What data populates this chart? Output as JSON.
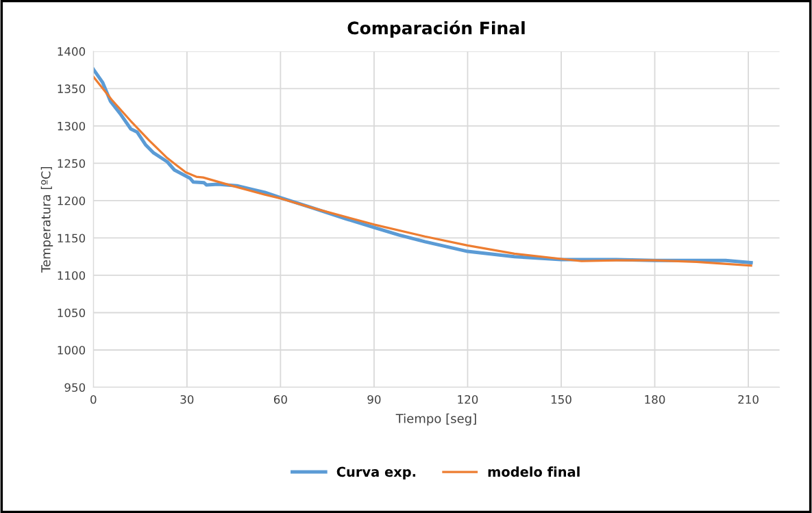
{
  "chart_data": {
    "type": "line",
    "title": "Comparación Final",
    "xlabel": "Tiempo [seg]",
    "ylabel": "Temperatura [ºC]",
    "xlim": [
      0,
      220
    ],
    "xticks": [
      0,
      30,
      60,
      90,
      120,
      150,
      180,
      210
    ],
    "ylim": [
      950,
      1400
    ],
    "yticks": [
      950,
      1000,
      1050,
      1100,
      1150,
      1200,
      1250,
      1300,
      1350,
      1400
    ],
    "grid": true,
    "legend": "bottom",
    "marker": "none",
    "line_style": "solid",
    "series": [
      {
        "name": "Curva exp.",
        "color": "#5b9bd5",
        "x": [
          0,
          3,
          5.5,
          8.5,
          12,
          14,
          16.7,
          19.3,
          23.7,
          26,
          31,
          32,
          35.5,
          36.3,
          40,
          46,
          51,
          55,
          60,
          70.5,
          80.7,
          90,
          98,
          106.3,
          120,
          135,
          150,
          167.7,
          180,
          202.7,
          210.9
        ],
        "values": [
          1376,
          1358,
          1333,
          1317,
          1296,
          1292,
          1275,
          1264,
          1252,
          1241,
          1230,
          1225,
          1224,
          1221,
          1222,
          1220,
          1215,
          1211,
          1204,
          1190,
          1176,
          1164,
          1154,
          1145,
          1132,
          1125,
          1121,
          1121,
          1120,
          1120,
          1117
        ]
      },
      {
        "name": "modelo final",
        "color": "#ed7d31",
        "x": [
          0,
          5.9,
          11.9,
          17.8,
          23.7,
          29.6,
          33,
          35.2,
          44.4,
          55,
          60,
          70.5,
          90,
          106.3,
          120,
          135,
          150,
          156.5,
          167.7,
          180,
          193.4,
          210.9
        ],
        "values": [
          1366,
          1335,
          1307,
          1281,
          1257,
          1238,
          1232,
          1231,
          1220,
          1208,
          1203,
          1190,
          1168,
          1152,
          1140,
          1129,
          1122,
          1119,
          1120,
          1120,
          1118,
          1113
        ]
      }
    ]
  }
}
